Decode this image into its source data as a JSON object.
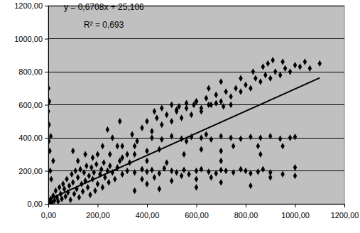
{
  "chart_data": {
    "type": "scatter",
    "annotations": [
      "y = 0,6708x + 25,106",
      "R² = 0,693"
    ],
    "xlim": [
      0,
      1200
    ],
    "xticks": [
      {
        "value": 0,
        "label": "0,00"
      },
      {
        "value": 200,
        "label": "200,00"
      },
      {
        "value": 400,
        "label": "400,00"
      },
      {
        "value": 600,
        "label": "600,00"
      },
      {
        "value": 800,
        "label": "800,00"
      },
      {
        "value": 1000,
        "label": "1000,00"
      },
      {
        "value": 1200,
        "label": "1200,00"
      }
    ],
    "ylim": [
      0,
      1200
    ],
    "yticks": [
      {
        "value": 0,
        "label": "0,00"
      },
      {
        "value": 200,
        "label": "200,00"
      },
      {
        "value": 400,
        "label": "400,00"
      },
      {
        "value": 600,
        "label": "600,00"
      },
      {
        "value": 800,
        "label": "800,00"
      },
      {
        "value": 1000,
        "label": "1000,00"
      },
      {
        "value": 1200,
        "label": "1200,00"
      }
    ],
    "grid": true,
    "series": [
      {
        "type": "scatter",
        "color": "#000000",
        "marker": "diamond",
        "x": [
          5,
          10,
          15,
          20,
          25,
          30,
          35,
          40,
          45,
          50,
          55,
          60,
          65,
          70,
          75,
          80,
          85,
          90,
          95,
          100,
          105,
          110,
          115,
          120,
          125,
          130,
          135,
          140,
          145,
          150,
          155,
          160,
          165,
          170,
          175,
          180,
          185,
          190,
          195,
          200,
          210,
          215,
          220,
          225,
          230,
          240,
          245,
          250,
          260,
          270,
          280,
          290,
          300,
          12,
          8,
          20,
          2,
          3,
          1,
          4,
          6,
          10,
          0,
          320,
          350,
          380,
          400,
          420,
          450,
          470,
          500,
          520,
          550,
          570,
          600,
          620,
          650,
          680,
          700,
          720,
          750,
          780,
          800,
          820,
          850,
          870,
          900,
          950,
          1000,
          660,
          540,
          430,
          380,
          600,
          350,
          420,
          460,
          500,
          540,
          580,
          620,
          660,
          700,
          740,
          780,
          820,
          860,
          900,
          940,
          980,
          1000,
          560,
          640,
          430,
          460,
          500,
          530,
          560,
          590,
          620,
          650,
          680,
          710,
          740,
          600,
          520,
          300,
          320,
          340,
          360,
          380,
          400,
          420,
          440,
          460,
          480,
          500,
          520,
          540,
          560,
          580,
          600,
          620,
          640,
          660,
          680,
          700,
          720,
          740,
          760,
          780,
          800,
          820,
          840,
          860,
          880,
          900,
          920,
          940,
          960,
          980,
          1000,
          1020,
          1040,
          1060,
          890,
          910,
          950,
          830,
          870,
          1100,
          780,
          700,
          650,
          250,
          280,
          300,
          330,
          200,
          220,
          180,
          260,
          150,
          120,
          240,
          290,
          350,
          400,
          450,
          480,
          550,
          620,
          700,
          750,
          850,
          950,
          100,
          400,
          700,
          860,
          350,
          400,
          450,
          500,
          600,
          700,
          820,
          900,
          1000
        ],
        "values": [
          10,
          30,
          5,
          50,
          20,
          80,
          40,
          15,
          100,
          60,
          30,
          120,
          90,
          45,
          150,
          70,
          110,
          25,
          180,
          130,
          60,
          200,
          90,
          160,
          40,
          210,
          120,
          75,
          190,
          140,
          230,
          100,
          170,
          55,
          220,
          150,
          190,
          80,
          240,
          120,
          180,
          210,
          100,
          250,
          160,
          200,
          130,
          230,
          190,
          150,
          220,
          260,
          180,
          150,
          200,
          260,
          380,
          480,
          700,
          620,
          320,
          410,
          560,
          200,
          190,
          210,
          195,
          205,
          185,
          215,
          200,
          190,
          205,
          180,
          200,
          210,
          195,
          185,
          205,
          200,
          190,
          210,
          200,
          185,
          195,
          210,
          190,
          180,
          220,
          160,
          170,
          160,
          150,
          150,
          350,
          400,
          390,
          410,
          395,
          405,
          400,
          390,
          410,
          400,
          395,
          405,
          400,
          410,
          395,
          400,
          405,
          380,
          420,
          560,
          580,
          600,
          590,
          610,
          600,
          580,
          600,
          610,
          590,
          600,
          620,
          570,
          350,
          300,
          420,
          380,
          460,
          500,
          440,
          520,
          480,
          540,
          500,
          560,
          520,
          580,
          540,
          620,
          560,
          640,
          600,
          660,
          620,
          680,
          650,
          700,
          680,
          720,
          700,
          760,
          740,
          780,
          760,
          800,
          780,
          820,
          800,
          840,
          830,
          860,
          820,
          850,
          870,
          860,
          800,
          830,
          850,
          760,
          740,
          700,
          300,
          350,
          280,
          250,
          300,
          350,
          280,
          400,
          300,
          260,
          450,
          500,
          300,
          320,
          330,
          250,
          300,
          330,
          320,
          350,
          350,
          350,
          320,
          260,
          260,
          300,
          80,
          120,
          90,
          140,
          100,
          130,
          110,
          160,
          170
        ]
      },
      {
        "type": "line",
        "color": "#000000",
        "line_style": "solid",
        "x": [
          0,
          1100
        ],
        "values": [
          25.106,
          762.99
        ]
      }
    ]
  }
}
